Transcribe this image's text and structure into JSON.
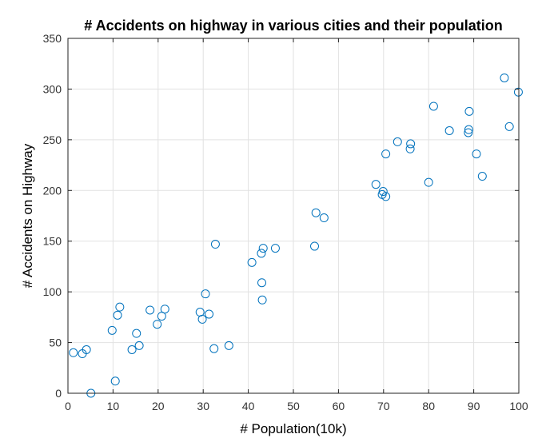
{
  "chart_data": {
    "type": "scatter",
    "title": "# Accidents on highway in various cities and their population",
    "xlabel": "# Population(10k)",
    "ylabel": "# Accidents on Highway",
    "xlim": [
      0,
      100
    ],
    "ylim": [
      0,
      350
    ],
    "xticks": [
      0,
      10,
      20,
      30,
      40,
      50,
      60,
      70,
      80,
      90,
      100
    ],
    "yticks": [
      0,
      50,
      100,
      150,
      200,
      250,
      300,
      350
    ],
    "grid": true,
    "marker": "circle-open",
    "color": "#0072BD",
    "points": [
      [
        1.2,
        40
      ],
      [
        3.2,
        39
      ],
      [
        4.1,
        43
      ],
      [
        5.1,
        0
      ],
      [
        9.8,
        62
      ],
      [
        10.5,
        12
      ],
      [
        11.0,
        77
      ],
      [
        11.5,
        85
      ],
      [
        14.2,
        43
      ],
      [
        15.2,
        59
      ],
      [
        15.8,
        47
      ],
      [
        18.2,
        82
      ],
      [
        19.8,
        68
      ],
      [
        20.8,
        76
      ],
      [
        21.5,
        83
      ],
      [
        29.3,
        80
      ],
      [
        29.8,
        73
      ],
      [
        30.5,
        98
      ],
      [
        31.3,
        78
      ],
      [
        32.4,
        44
      ],
      [
        32.7,
        147
      ],
      [
        35.7,
        47
      ],
      [
        40.8,
        129
      ],
      [
        42.9,
        138
      ],
      [
        43.0,
        109
      ],
      [
        43.1,
        92
      ],
      [
        43.3,
        143
      ],
      [
        46.0,
        143
      ],
      [
        54.7,
        145
      ],
      [
        55.0,
        178
      ],
      [
        56.8,
        173
      ],
      [
        68.3,
        206
      ],
      [
        69.7,
        196
      ],
      [
        69.9,
        199
      ],
      [
        70.5,
        194
      ],
      [
        70.5,
        236
      ],
      [
        73.1,
        248
      ],
      [
        75.9,
        241
      ],
      [
        76.0,
        246
      ],
      [
        80.0,
        208
      ],
      [
        81.1,
        283
      ],
      [
        84.6,
        259
      ],
      [
        88.8,
        257
      ],
      [
        88.9,
        260
      ],
      [
        89.0,
        278
      ],
      [
        90.6,
        236
      ],
      [
        91.9,
        214
      ],
      [
        96.8,
        311
      ],
      [
        97.9,
        263
      ],
      [
        99.9,
        297
      ]
    ]
  }
}
